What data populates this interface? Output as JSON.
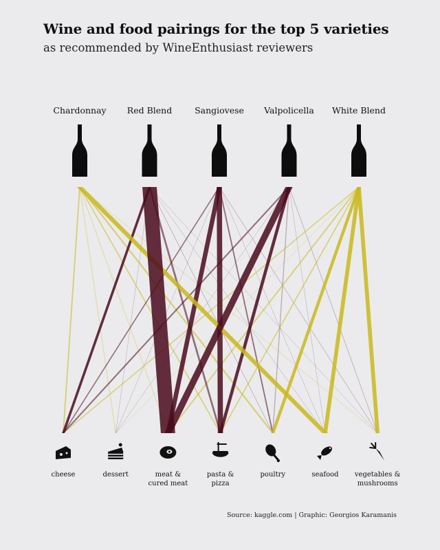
{
  "title": "Wine and food pairings for the top 5 varieties",
  "subtitle": "as recommended by WineEnthusiast reviewers",
  "source": "Source: kaggle.com | Graphic: Georgios Karamanis",
  "colors": {
    "red": "#4a0a1c",
    "white": "#c9b81a",
    "background": "#ebebed",
    "bottle": "#0d0d0d"
  },
  "chart_data": {
    "type": "sankey",
    "wines": [
      {
        "name": "Chardonnay",
        "color": "white"
      },
      {
        "name": "Red Blend",
        "color": "red"
      },
      {
        "name": "Sangiovese",
        "color": "red"
      },
      {
        "name": "Valpolicella",
        "color": "red"
      },
      {
        "name": "White Blend",
        "color": "white"
      }
    ],
    "foods": [
      {
        "name": "cheese",
        "lines": [
          "cheese"
        ],
        "icon": "cheese-icon"
      },
      {
        "name": "dessert",
        "lines": [
          "dessert"
        ],
        "icon": "cake-icon"
      },
      {
        "name": "meat & cured meat",
        "lines": [
          "meat &",
          "cured meat"
        ],
        "icon": "steak-icon"
      },
      {
        "name": "pasta & pizza",
        "lines": [
          "pasta &",
          "pizza"
        ],
        "icon": "pasta-bowl-icon"
      },
      {
        "name": "poultry",
        "lines": [
          "poultry"
        ],
        "icon": "drumstick-icon"
      },
      {
        "name": "seafood",
        "lines": [
          "seafood"
        ],
        "icon": "fish-icon"
      },
      {
        "name": "vegetables & mushrooms",
        "lines": [
          "vegetables &",
          "mushrooms"
        ],
        "icon": "carrot-icon"
      }
    ],
    "links": [
      {
        "wine": "Chardonnay",
        "food": "cheese",
        "value": 2
      },
      {
        "wine": "Chardonnay",
        "food": "dessert",
        "value": 1.5
      },
      {
        "wine": "Chardonnay",
        "food": "meat & cured meat",
        "value": 1.5
      },
      {
        "wine": "Chardonnay",
        "food": "pasta & pizza",
        "value": 2
      },
      {
        "wine": "Chardonnay",
        "food": "poultry",
        "value": 3
      },
      {
        "wine": "Chardonnay",
        "food": "seafood",
        "value": 9
      },
      {
        "wine": "Chardonnay",
        "food": "vegetables & mushrooms",
        "value": 1.5
      },
      {
        "wine": "Red Blend",
        "food": "cheese",
        "value": 4
      },
      {
        "wine": "Red Blend",
        "food": "dessert",
        "value": 0.6
      },
      {
        "wine": "Red Blend",
        "food": "meat & cured meat",
        "value": 22
      },
      {
        "wine": "Red Blend",
        "food": "pasta & pizza",
        "value": 3
      },
      {
        "wine": "Red Blend",
        "food": "poultry",
        "value": 1
      },
      {
        "wine": "Red Blend",
        "food": "seafood",
        "value": 0.6
      },
      {
        "wine": "Red Blend",
        "food": "vegetables & mushrooms",
        "value": 0.6
      },
      {
        "wine": "Sangiovese",
        "food": "cheese",
        "value": 2
      },
      {
        "wine": "Sangiovese",
        "food": "dessert",
        "value": 0.5
      },
      {
        "wine": "Sangiovese",
        "food": "meat & cured meat",
        "value": 7
      },
      {
        "wine": "Sangiovese",
        "food": "pasta & pizza",
        "value": 8
      },
      {
        "wine": "Sangiovese",
        "food": "poultry",
        "value": 2
      },
      {
        "wine": "Sangiovese",
        "food": "seafood",
        "value": 0.6
      },
      {
        "wine": "Sangiovese",
        "food": "vegetables & mushrooms",
        "value": 1
      },
      {
        "wine": "Valpolicella",
        "food": "cheese",
        "value": 3
      },
      {
        "wine": "Valpolicella",
        "food": "dessert",
        "value": 0.5
      },
      {
        "wine": "Valpolicella",
        "food": "meat & cured meat",
        "value": 11
      },
      {
        "wine": "Valpolicella",
        "food": "pasta & pizza",
        "value": 5
      },
      {
        "wine": "Valpolicella",
        "food": "poultry",
        "value": 1.5
      },
      {
        "wine": "Valpolicella",
        "food": "seafood",
        "value": 0.5
      },
      {
        "wine": "Valpolicella",
        "food": "vegetables & mushrooms",
        "value": 1
      },
      {
        "wine": "White Blend",
        "food": "cheese",
        "value": 2.5
      },
      {
        "wine": "White Blend",
        "food": "dessert",
        "value": 1
      },
      {
        "wine": "White Blend",
        "food": "meat & cured meat",
        "value": 2.5
      },
      {
        "wine": "White Blend",
        "food": "pasta & pizza",
        "value": 2
      },
      {
        "wine": "White Blend",
        "food": "poultry",
        "value": 5
      },
      {
        "wine": "White Blend",
        "food": "seafood",
        "value": 6
      },
      {
        "wine": "White Blend",
        "food": "vegetables & mushrooms",
        "value": 6
      }
    ]
  }
}
